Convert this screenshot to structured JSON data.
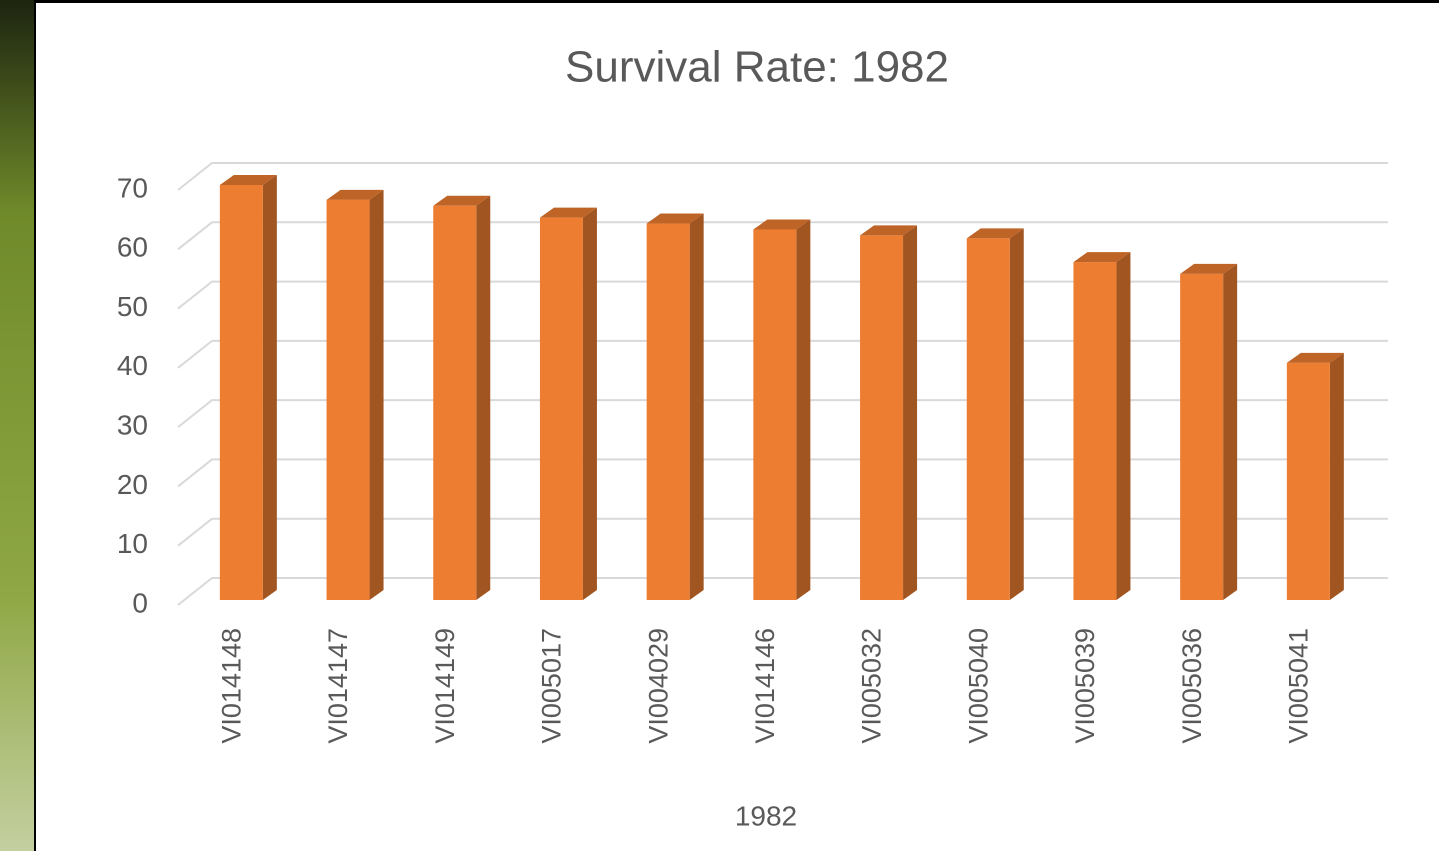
{
  "chart_data": {
    "type": "bar",
    "title": "Survival Rate: 1982",
    "x_label": "1982",
    "categories": [
      "VI014148",
      "VI014147",
      "VI014149",
      "VI005017",
      "VI004029",
      "VI014146",
      "VI005032",
      "VI005040",
      "VI005039",
      "VI005036",
      "VI005041"
    ],
    "values": [
      70,
      67.5,
      66.5,
      64.5,
      63.5,
      62.5,
      61.5,
      61,
      57,
      55,
      40
    ],
    "color": "#ed7d31",
    "ylim": [
      0,
      70
    ],
    "yticks": [
      0,
      10,
      20,
      30,
      40,
      50,
      60,
      70
    ],
    "grid": true
  }
}
